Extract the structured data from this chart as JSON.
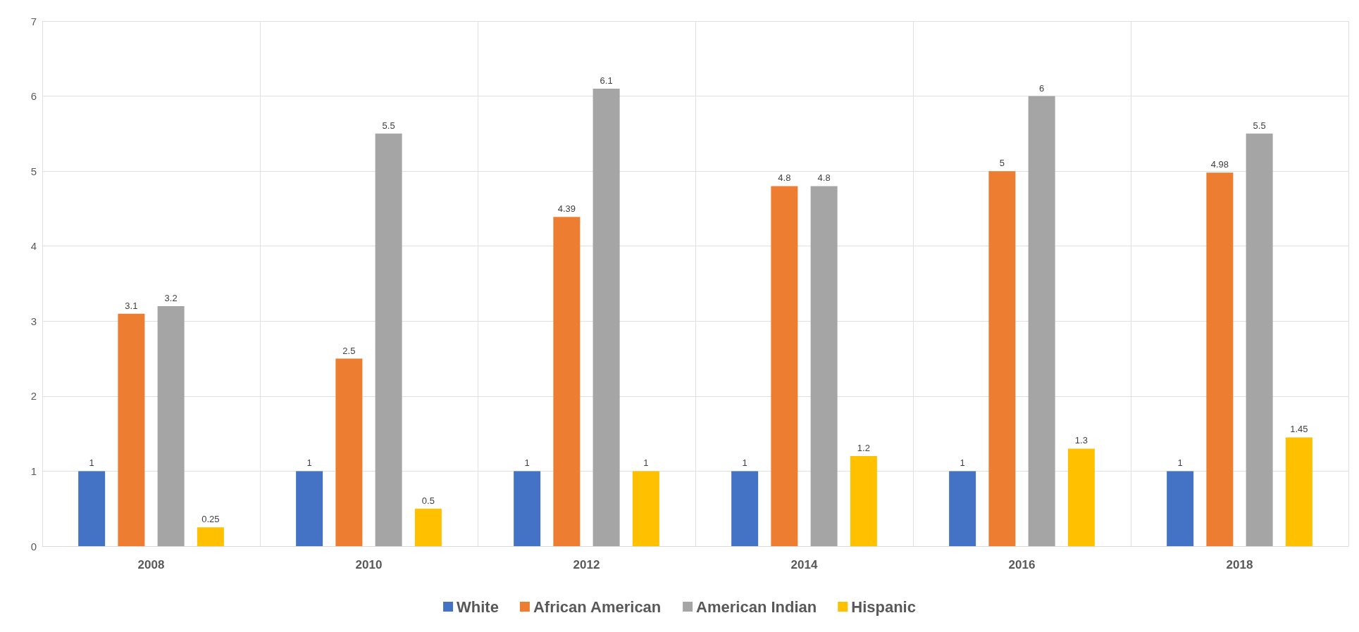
{
  "chart_data": {
    "type": "bar",
    "categories": [
      "2008",
      "2010",
      "2012",
      "2014",
      "2016",
      "2018"
    ],
    "series": [
      {
        "name": "White",
        "color": "#4472c4",
        "values": [
          1,
          1,
          1,
          1,
          1,
          1
        ]
      },
      {
        "name": "African American",
        "color": "#ed7d31",
        "values": [
          3.1,
          2.5,
          4.39,
          4.8,
          5,
          4.98
        ]
      },
      {
        "name": "American Indian",
        "color": "#a5a5a5",
        "values": [
          3.2,
          5.5,
          6.1,
          4.8,
          6,
          5.5
        ]
      },
      {
        "name": "Hispanic",
        "color": "#ffc000",
        "values": [
          0.25,
          0.5,
          1,
          1.2,
          1.3,
          1.45
        ]
      }
    ],
    "ylim": [
      0,
      7
    ],
    "yticks": [
      0,
      1,
      2,
      3,
      4,
      5,
      6,
      7
    ],
    "grid": true,
    "legend": "bottom",
    "data_labels": true
  }
}
